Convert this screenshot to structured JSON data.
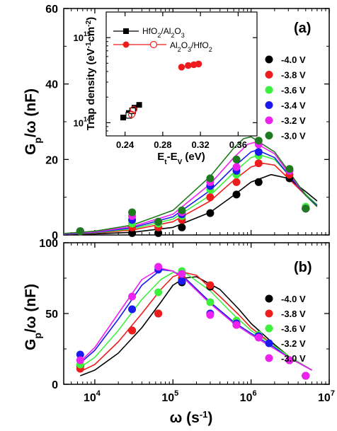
{
  "chart_data": [
    {
      "panel": "(a)",
      "type": "scatter",
      "x_scale": "log",
      "xlim": [
        4000,
        10000000
      ],
      "ylim": [
        0,
        60
      ],
      "ylabel": "G_p/ω (nF)",
      "yticks": [
        0,
        20,
        40,
        60
      ],
      "x": [
        6500,
        30000,
        65000,
        130000,
        300000,
        650000,
        1250000,
        3100000,
        5000000
      ],
      "series": [
        {
          "name": "-4.0 V",
          "color": "#000000",
          "points": [
            1.0,
            0.5,
            0.5,
            2.0,
            5.8,
            10.7,
            14.0,
            15.0,
            7.0
          ],
          "fit_x": [
            4000,
            10000,
            30000,
            100000,
            300000,
            600000,
            1000000,
            1800000,
            3000000,
            5000000,
            7000000
          ],
          "fit_y": [
            0.1,
            0.3,
            0.7,
            2.0,
            6.0,
            10.5,
            14.0,
            16.0,
            15.0,
            11.5,
            9.0
          ]
        },
        {
          "name": "-3.8 V",
          "color": "#ee1c1c",
          "points": [
            1.0,
            2.0,
            2.0,
            4.0,
            10.0,
            14.0,
            19.0,
            16.0,
            7.0
          ],
          "fit_x": [
            4000,
            10000,
            30000,
            100000,
            300000,
            600000,
            1000000,
            1400000,
            2000000,
            3000000,
            5000000,
            7000000
          ],
          "fit_y": [
            0.2,
            0.5,
            1.3,
            3.5,
            9.0,
            14.5,
            18.0,
            19.0,
            18.5,
            15.0,
            10.5,
            8.0
          ]
        },
        {
          "name": "-3.6 V",
          "color": "#3ef03e",
          "points": [
            1.0,
            3.0,
            3.0,
            5.0,
            12.0,
            16.0,
            21.0,
            17.0,
            7.5
          ],
          "fit_x": [
            4000,
            10000,
            30000,
            100000,
            300000,
            600000,
            1000000,
            1300000,
            2000000,
            3000000,
            5000000,
            7000000
          ],
          "fit_y": [
            0.2,
            0.6,
            1.6,
            4.2,
            10.5,
            16.5,
            20.5,
            21.2,
            20.0,
            16.0,
            10.8,
            8.0
          ]
        },
        {
          "name": "-3.4 V",
          "color": "#1a1aee",
          "points": [
            1.0,
            4.0,
            3.5,
            5.5,
            13.0,
            17.0,
            22.0,
            17.0,
            7.0
          ],
          "fit_x": [
            4000,
            10000,
            30000,
            100000,
            300000,
            600000,
            1000000,
            1200000,
            2000000,
            3000000,
            5000000,
            7000000
          ],
          "fit_y": [
            0.2,
            0.7,
            1.9,
            4.8,
            11.8,
            18.0,
            22.0,
            22.5,
            20.5,
            16.0,
            10.5,
            7.8
          ]
        },
        {
          "name": "-3.2 V",
          "color": "#ee22ee",
          "points": [
            1.0,
            5.0,
            3.5,
            6.0,
            14.0,
            18.0,
            24.0,
            17.0,
            7.0
          ],
          "fit_x": [
            4000,
            10000,
            30000,
            100000,
            300000,
            600000,
            900000,
            1100000,
            2000000,
            3000000,
            5000000,
            7000000
          ],
          "fit_y": [
            0.3,
            0.8,
            2.2,
            5.5,
            13.5,
            20.5,
            24.0,
            24.5,
            21.5,
            16.5,
            10.5,
            7.5
          ]
        },
        {
          "name": "-3.0 V",
          "color": "#1e7a1e",
          "points": [
            1.0,
            6.0,
            3.5,
            6.5,
            15.0,
            20.0,
            25.0,
            17.5,
            7.0
          ],
          "fit_x": [
            4000,
            10000,
            30000,
            100000,
            300000,
            600000,
            800000,
            1000000,
            2000000,
            3000000,
            5000000,
            7000000
          ],
          "fit_y": [
            0.4,
            1.0,
            2.6,
            6.5,
            15.5,
            23.0,
            25.5,
            26.0,
            22.0,
            17.0,
            10.5,
            7.5
          ]
        }
      ],
      "inset": {
        "type": "scatter",
        "xlabel": "E_t-E_V (eV)",
        "ylabel": "Trap density (eV⁻¹cm⁻²)",
        "y_scale": "log",
        "xlim": [
          0.22,
          0.38
        ],
        "ylim": [
          70000000000000,
          2000000000000000
        ],
        "xticks": [
          0.24,
          0.28,
          0.32,
          0.36
        ],
        "series": [
          {
            "name": "HfO₂/Al₂O₃",
            "color": "#000000",
            "marker": "filled-square",
            "x": [
              0.238,
              0.244,
              0.25,
              0.255
            ],
            "y": [
              115000000000000,
              130000000000000,
              150000000000000,
              162000000000000
            ]
          },
          {
            "name": "HfO₂/Al₂O₃ (open)",
            "color": "#000000",
            "marker": "open-square",
            "x": [
              0.244,
              0.248
            ],
            "y": [
              122000000000000,
              138000000000000
            ]
          },
          {
            "name": "Al₂O₃/HfO₂",
            "color": "#ee1c1c",
            "marker": "filled-circle",
            "x": [
              0.3,
              0.307,
              0.313,
              0.318
            ],
            "y": [
              450000000000000,
              470000000000000,
              480000000000000,
              490000000000000
            ]
          },
          {
            "name": "Al₂O₃/HfO₂ (open)",
            "color": "#ee1c1c",
            "marker": "open-circle",
            "x": [
              0.247,
              0.249
            ],
            "y": [
              125000000000000,
              143000000000000
            ]
          }
        ]
      }
    },
    {
      "panel": "(b)",
      "type": "scatter",
      "x_scale": "log",
      "xlim": [
        4000,
        10000000
      ],
      "ylim": [
        0,
        100
      ],
      "xlabel": "ω (s⁻¹)",
      "ylabel": "G_p/ω (nF)",
      "yticks": [
        0,
        50,
        100
      ],
      "x": [
        6500,
        30000,
        65000,
        130000,
        300000,
        650000,
        1250000,
        3100000,
        5000000
      ],
      "series": [
        {
          "name": "-4.0 V",
          "color": "#000000",
          "points": [
            13,
            38,
            50,
            72,
            69,
            42,
            34,
            17,
            6
          ],
          "fit_x": [
            6500,
            10000,
            20000,
            40000,
            70000,
            100000,
            140000,
            200000,
            400000,
            700000,
            1000000,
            2000000,
            3000000,
            6000000
          ],
          "fit_y": [
            6,
            10,
            22,
            40,
            58,
            70,
            75,
            76,
            67,
            53,
            43,
            28,
            20,
            10
          ]
        },
        {
          "name": "-3.8 V",
          "color": "#ee1c1c",
          "points": [
            11,
            38,
            50,
            75,
            70,
            42,
            35,
            17,
            6
          ],
          "fit_x": [
            6500,
            10000,
            20000,
            40000,
            70000,
            100000,
            140000,
            200000,
            400000,
            700000,
            1000000,
            2000000,
            3000000,
            6000000
          ],
          "fit_y": [
            9,
            14,
            30,
            50,
            67,
            76,
            79,
            77,
            62,
            49,
            40,
            27,
            20,
            10
          ]
        },
        {
          "name": "-3.6 V",
          "color": "#3ef03e",
          "points": [
            14,
            53,
            65,
            80,
            58,
            45,
            35,
            17,
            6
          ],
          "fit_x": [
            6500,
            10000,
            20000,
            40000,
            70000,
            100000,
            150000,
            300000,
            600000,
            1000000,
            2000000,
            3000000,
            6000000
          ],
          "fit_y": [
            12,
            19,
            38,
            60,
            74,
            79,
            78,
            66,
            49,
            38,
            27,
            20,
            10
          ]
        },
        {
          "name": "-3.2 V",
          "color": "#1a1aee",
          "points": [
            21,
            53,
            81,
            73,
            50,
            43,
            34,
            17,
            6
          ],
          "fit_x": [
            6500,
            10000,
            20000,
            40000,
            70000,
            100000,
            150000,
            300000,
            600000,
            1000000,
            2000000,
            3000000,
            6000000
          ],
          "fit_y": [
            15,
            24,
            46,
            70,
            81,
            80,
            74,
            58,
            44,
            36,
            26,
            19,
            10
          ]
        },
        {
          "name": "-3.0 V",
          "color": "#ee22ee",
          "points": [
            17,
            62,
            83,
            78,
            49,
            42,
            33,
            17,
            6
          ],
          "fit_x": [
            6500,
            10000,
            20000,
            40000,
            70000,
            100000,
            150000,
            300000,
            600000,
            1000000,
            2000000,
            3000000,
            6000000
          ],
          "fit_y": [
            16,
            26,
            50,
            74,
            82,
            80,
            73,
            57,
            43,
            35,
            25,
            19,
            10
          ]
        }
      ]
    }
  ]
}
